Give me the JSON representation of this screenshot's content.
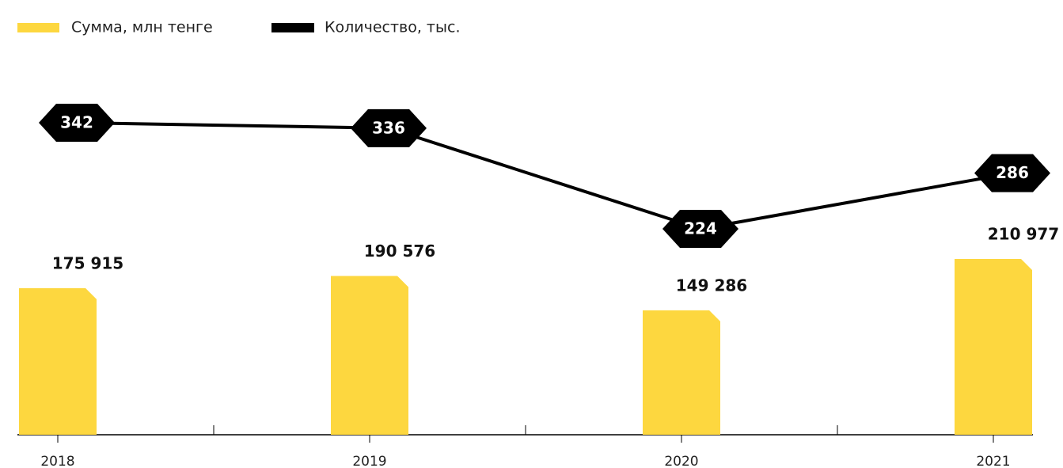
{
  "chart_data": {
    "type": "bar_line",
    "categories": [
      "2018",
      "2019",
      "2020",
      "2021"
    ],
    "series": [
      {
        "name": "Сумма, млн тенге",
        "color": "#fdd73f",
        "type": "bar",
        "values": [
          175915,
          190576,
          149286,
          210977
        ],
        "value_labels": [
          "175 915",
          "190 576",
          "149 286",
          "210 977"
        ]
      },
      {
        "name": "Количество, тыс.",
        "color": "#000000",
        "type": "line",
        "values": [
          342,
          336,
          224,
          286
        ]
      }
    ]
  }
}
